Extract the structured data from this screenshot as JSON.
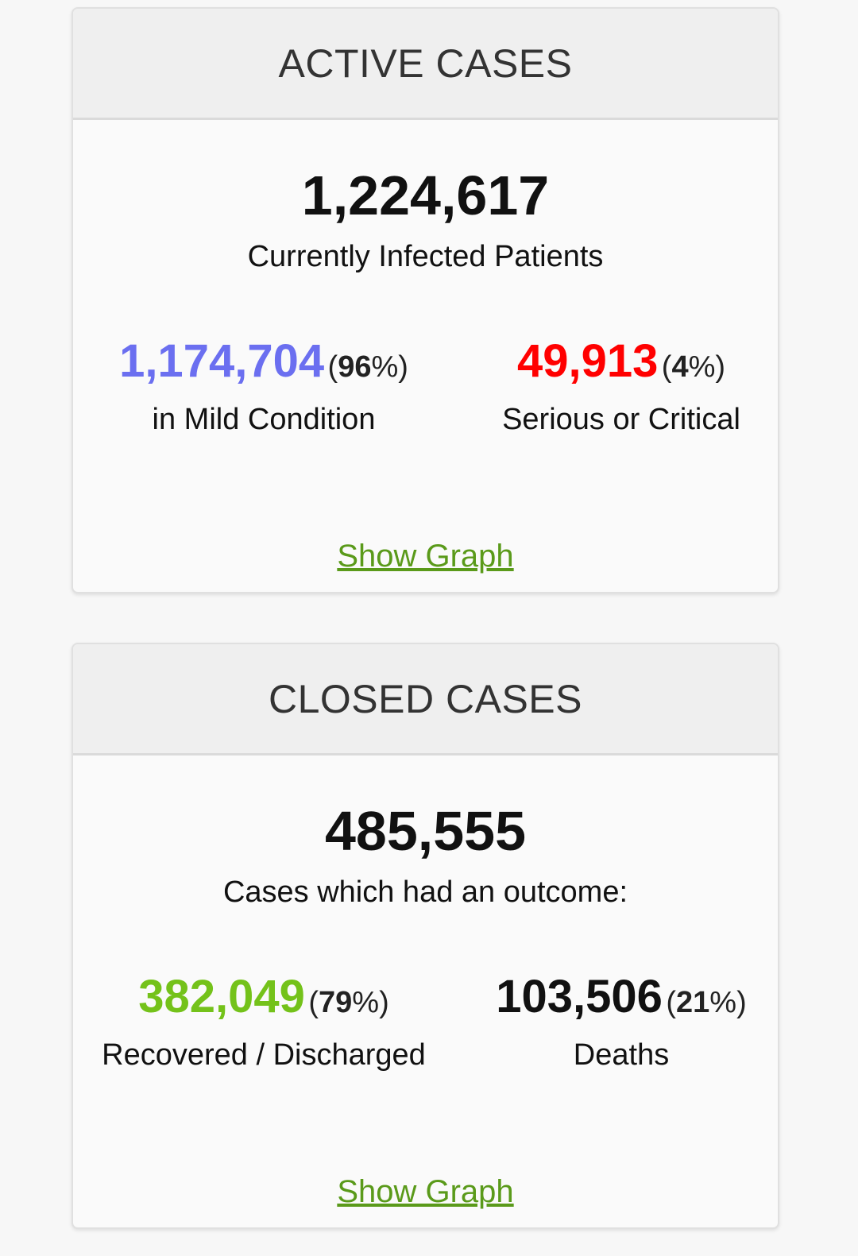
{
  "colors": {
    "mild": "#6b6ff0",
    "critical": "#ff0000",
    "recovered": "#74c21a",
    "deaths": "#111111",
    "link": "#5a9a1a"
  },
  "active": {
    "title": "ACTIVE CASES",
    "total": "1,224,617",
    "total_caption": "Currently Infected Patients",
    "mild": {
      "number": "1,174,704",
      "pct_open": "(",
      "pct": "96",
      "pct_close": "%)",
      "caption": "in Mild Condition"
    },
    "critical": {
      "number": "49,913",
      "pct_open": "(",
      "pct": "4",
      "pct_close": "%)",
      "caption": "Serious or Critical"
    },
    "link": "Show Graph"
  },
  "closed": {
    "title": "CLOSED CASES",
    "total": "485,555",
    "total_caption": "Cases which had an outcome:",
    "recovered": {
      "number": "382,049",
      "pct_open": "(",
      "pct": "79",
      "pct_close": "%)",
      "caption": "Recovered / Discharged"
    },
    "deaths": {
      "number": "103,506",
      "pct_open": "(",
      "pct": "21",
      "pct_close": "%)",
      "caption": "Deaths"
    },
    "link": "Show Graph"
  }
}
